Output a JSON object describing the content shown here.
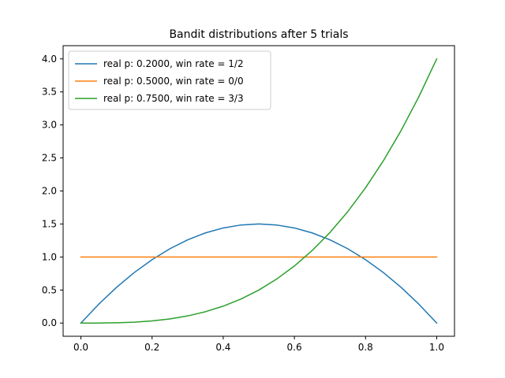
{
  "chart_data": {
    "type": "line",
    "title": "Bandit distributions after 5 trials",
    "xlabel": "",
    "ylabel": "",
    "xlim": [
      -0.05,
      1.05
    ],
    "ylim": [
      -0.2,
      4.2
    ],
    "xticks": [
      0.0,
      0.2,
      0.4,
      0.6,
      0.8,
      1.0
    ],
    "xtick_labels": [
      "0.0",
      "0.2",
      "0.4",
      "0.6",
      "0.8",
      "1.0"
    ],
    "yticks": [
      0.0,
      0.5,
      1.0,
      1.5,
      2.0,
      2.5,
      3.0,
      3.5,
      4.0
    ],
    "ytick_labels": [
      "0.0",
      "0.5",
      "1.0",
      "1.5",
      "2.0",
      "2.5",
      "3.0",
      "3.5",
      "4.0"
    ],
    "grid": false,
    "legend_position": "top-left",
    "x": [
      0.0,
      0.05,
      0.1,
      0.15,
      0.2,
      0.25,
      0.3,
      0.35,
      0.4,
      0.45,
      0.5,
      0.55,
      0.6,
      0.65,
      0.7,
      0.75,
      0.8,
      0.85,
      0.9,
      0.95,
      1.0
    ],
    "series": [
      {
        "name": "real p: 0.2000, win rate = 1/2",
        "color": "#1f77b4",
        "values": [
          0.0,
          0.285,
          0.54,
          0.765,
          0.96,
          1.125,
          1.26,
          1.365,
          1.44,
          1.485,
          1.5,
          1.485,
          1.44,
          1.365,
          1.26,
          1.125,
          0.96,
          0.765,
          0.54,
          0.285,
          0.0
        ]
      },
      {
        "name": "real p: 0.5000, win rate = 0/0",
        "color": "#ff7f0e",
        "values": [
          1.0,
          1.0,
          1.0,
          1.0,
          1.0,
          1.0,
          1.0,
          1.0,
          1.0,
          1.0,
          1.0,
          1.0,
          1.0,
          1.0,
          1.0,
          1.0,
          1.0,
          1.0,
          1.0,
          1.0,
          1.0
        ]
      },
      {
        "name": "real p: 0.7500, win rate = 3/3",
        "color": "#2ca02c",
        "values": [
          0.0,
          0.0005,
          0.004,
          0.0135,
          0.032,
          0.0625,
          0.108,
          0.1715,
          0.256,
          0.3645,
          0.5,
          0.6655,
          0.864,
          1.0985,
          1.372,
          1.6875,
          2.048,
          2.4565,
          2.916,
          3.4295,
          4.0
        ]
      }
    ]
  }
}
